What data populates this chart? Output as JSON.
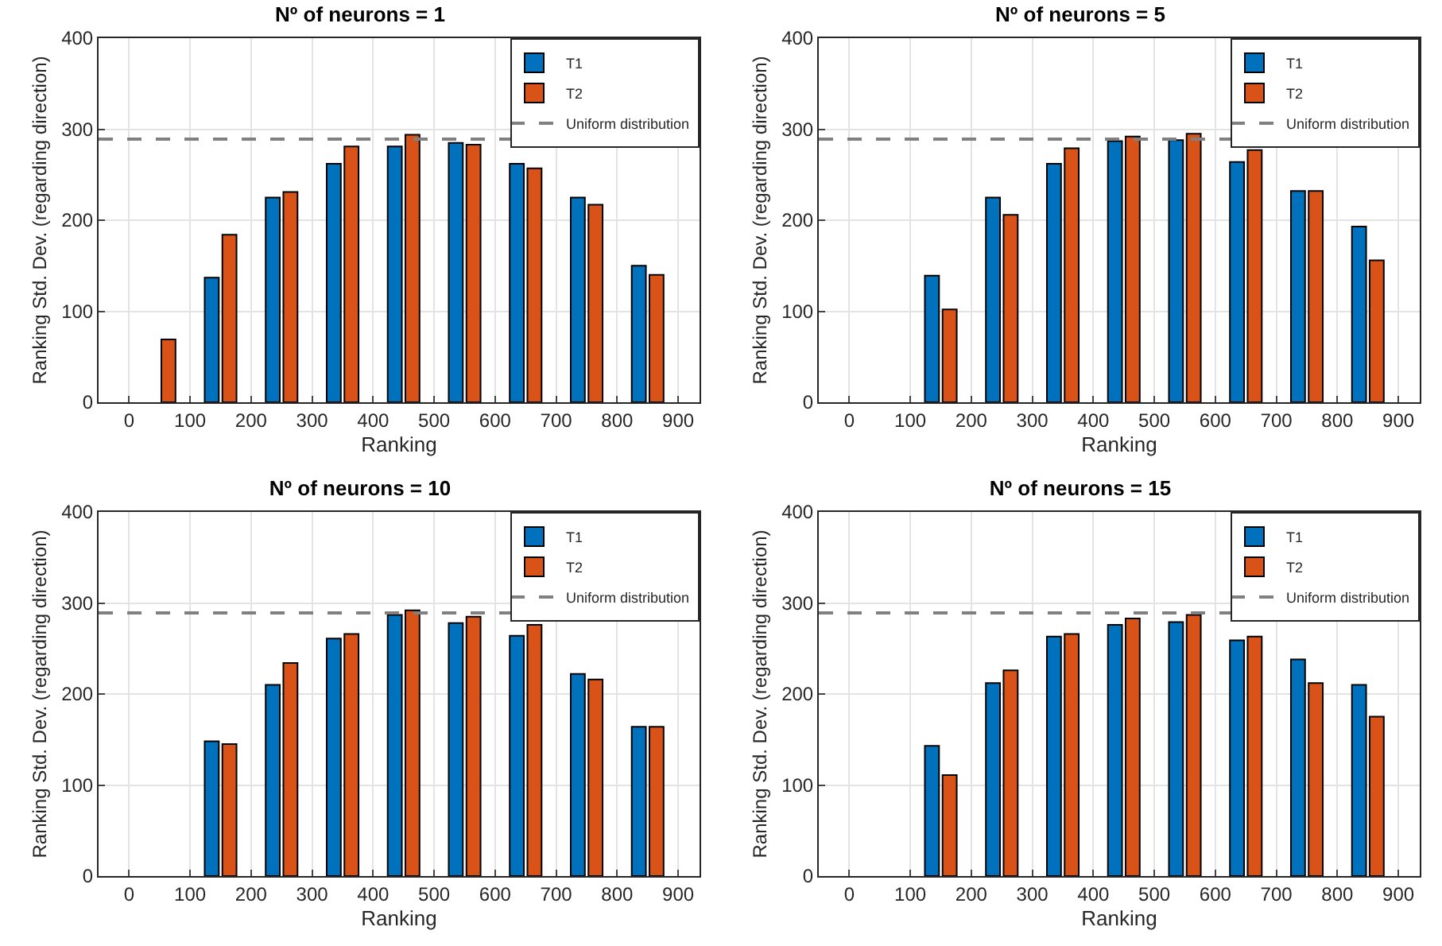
{
  "chart_data": [
    {
      "type": "bar",
      "title": "Nº of neurons = 1",
      "xlabel": "Ranking",
      "ylabel": "Ranking Std. Dev. (regarding direction)",
      "x": [
        50,
        150,
        250,
        350,
        450,
        550,
        650,
        750,
        850
      ],
      "series": [
        {
          "name": "T1",
          "color": "#0072bd",
          "values": [
            null,
            137,
            225,
            262,
            281,
            285,
            262,
            225,
            150
          ]
        },
        {
          "name": "T2",
          "color": "#d95319",
          "values": [
            69,
            184,
            231,
            281,
            294,
            283,
            257,
            217,
            140
          ]
        }
      ],
      "xlim": [
        -50,
        935
      ],
      "xticks": [
        0,
        100,
        200,
        300,
        400,
        500,
        600,
        700,
        800,
        900
      ],
      "ylim": [
        0,
        400
      ],
      "yticks": [
        0,
        100,
        200,
        300,
        400
      ],
      "grid": true,
      "legend": "top right",
      "ref_lines": [
        {
          "axis": "y",
          "value": 289,
          "label": "Uniform distribution",
          "color": "#808080",
          "line_style": "dashed"
        }
      ]
    },
    {
      "type": "bar",
      "title": "Nº of neurons = 5",
      "xlabel": "Ranking",
      "ylabel": "Ranking Std. Dev. (regarding direction)",
      "x": [
        150,
        250,
        350,
        450,
        550,
        650,
        750,
        850
      ],
      "series": [
        {
          "name": "T1",
          "color": "#0072bd",
          "values": [
            139,
            225,
            262,
            287,
            288,
            264,
            232,
            193
          ]
        },
        {
          "name": "T2",
          "color": "#d95319",
          "values": [
            102,
            206,
            279,
            292,
            295,
            277,
            232,
            156
          ]
        }
      ],
      "xlim": [
        -50,
        935
      ],
      "xticks": [
        0,
        100,
        200,
        300,
        400,
        500,
        600,
        700,
        800,
        900
      ],
      "ylim": [
        0,
        400
      ],
      "yticks": [
        0,
        100,
        200,
        300,
        400
      ],
      "grid": true,
      "legend": "top right",
      "ref_lines": [
        {
          "axis": "y",
          "value": 289,
          "label": "Uniform distribution",
          "color": "#808080",
          "line_style": "dashed"
        }
      ]
    },
    {
      "type": "bar",
      "title": "Nº of neurons = 10",
      "xlabel": "Ranking",
      "ylabel": "Ranking Std. Dev. (regarding direction)",
      "x": [
        150,
        250,
        350,
        450,
        550,
        650,
        750,
        850
      ],
      "series": [
        {
          "name": "T1",
          "color": "#0072bd",
          "values": [
            148,
            210,
            261,
            287,
            278,
            264,
            222,
            164
          ]
        },
        {
          "name": "T2",
          "color": "#d95319",
          "values": [
            145,
            234,
            266,
            292,
            285,
            276,
            216,
            164
          ]
        }
      ],
      "xlim": [
        -50,
        935
      ],
      "xticks": [
        0,
        100,
        200,
        300,
        400,
        500,
        600,
        700,
        800,
        900
      ],
      "ylim": [
        0,
        400
      ],
      "yticks": [
        0,
        100,
        200,
        300,
        400
      ],
      "grid": true,
      "legend": "top right",
      "ref_lines": [
        {
          "axis": "y",
          "value": 289,
          "label": "Uniform distribution",
          "color": "#808080",
          "line_style": "dashed"
        }
      ]
    },
    {
      "type": "bar",
      "title": "Nº of neurons = 15",
      "xlabel": "Ranking",
      "ylabel": "Ranking Std. Dev. (regarding direction)",
      "x": [
        150,
        250,
        350,
        450,
        550,
        650,
        750,
        850
      ],
      "series": [
        {
          "name": "T1",
          "color": "#0072bd",
          "values": [
            143,
            212,
            263,
            276,
            279,
            259,
            238,
            210
          ]
        },
        {
          "name": "T2",
          "color": "#d95319",
          "values": [
            111,
            226,
            266,
            283,
            287,
            263,
            212,
            175
          ]
        }
      ],
      "xlim": [
        -50,
        935
      ],
      "xticks": [
        0,
        100,
        200,
        300,
        400,
        500,
        600,
        700,
        800,
        900
      ],
      "ylim": [
        0,
        400
      ],
      "yticks": [
        0,
        100,
        200,
        300,
        400
      ],
      "grid": true,
      "legend": "top right",
      "ref_lines": [
        {
          "axis": "y",
          "value": 289,
          "label": "Uniform distribution",
          "color": "#808080",
          "line_style": "dashed"
        }
      ]
    }
  ]
}
